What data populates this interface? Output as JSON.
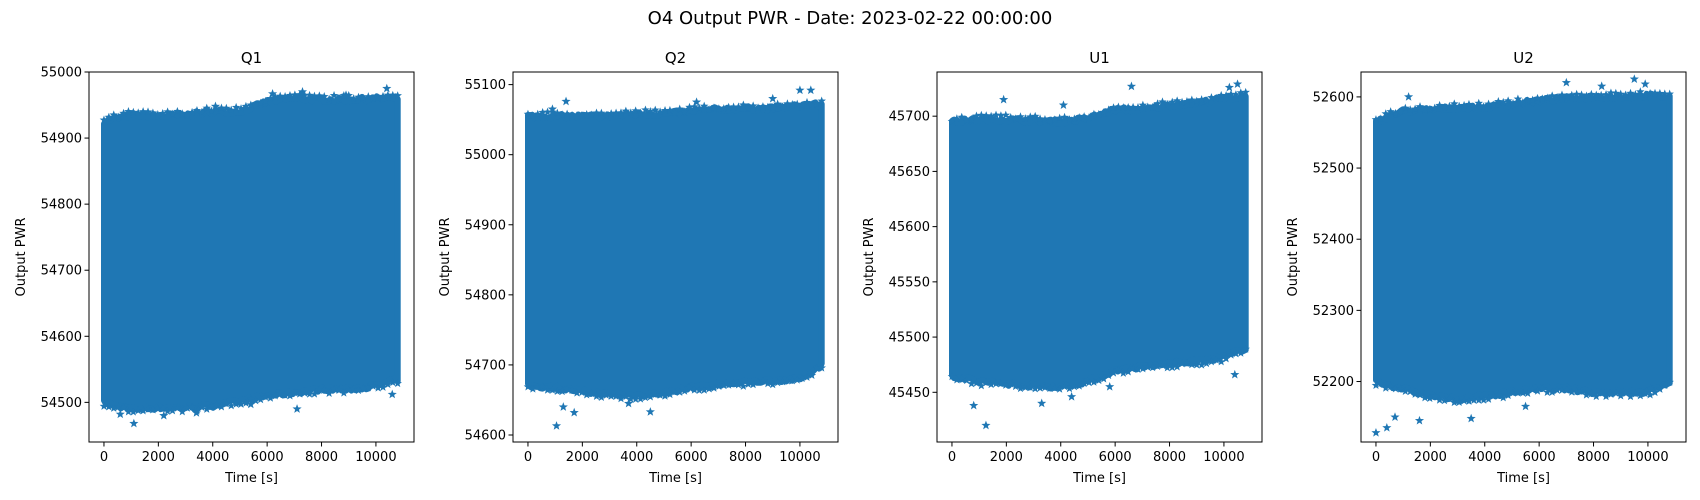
{
  "figure": {
    "suptitle": "O4 Output PWR - Date: 2023-02-22 00:00:00"
  },
  "chart_data": [
    {
      "type": "scatter",
      "title": "Q1",
      "xlabel": "Time [s]",
      "ylabel": "Output PWR",
      "marker": "star",
      "color": "#1f77b4",
      "xlim": [
        -550,
        11400
      ],
      "ylim": [
        54440,
        55000
      ],
      "xticks": [
        0,
        2000,
        4000,
        6000,
        8000,
        10000
      ],
      "yticks": [
        54500,
        54600,
        54700,
        54800,
        54900,
        55000
      ],
      "x_range": [
        0,
        10800
      ],
      "envelope": {
        "x": [
          0,
          1000,
          2000,
          3000,
          4000,
          5000,
          6000,
          7000,
          8000,
          9000,
          10000,
          10800
        ],
        "upper": [
          54925,
          54935,
          54933,
          54935,
          54940,
          54940,
          54955,
          54960,
          54958,
          54958,
          54960,
          54960
        ],
        "lower": [
          54500,
          54490,
          54492,
          54492,
          54495,
          54502,
          54510,
          54515,
          54520,
          54520,
          54525,
          54535
        ]
      },
      "outliers": [
        [
          1100,
          54468
        ],
        [
          600,
          54482
        ],
        [
          2200,
          54480
        ],
        [
          3400,
          54484
        ],
        [
          5400,
          54497
        ],
        [
          7100,
          54490
        ],
        [
          10600,
          54512
        ],
        [
          4100,
          54948
        ],
        [
          6200,
          54967
        ],
        [
          7300,
          54970
        ],
        [
          8900,
          54965
        ],
        [
          10400,
          54975
        ]
      ]
    },
    {
      "type": "scatter",
      "title": "Q2",
      "xlabel": "Time [s]",
      "ylabel": "Output PWR",
      "marker": "star",
      "color": "#1f77b4",
      "xlim": [
        -550,
        11400
      ],
      "ylim": [
        54590,
        55118
      ],
      "xticks": [
        0,
        2000,
        4000,
        6000,
        8000,
        10000
      ],
      "yticks": [
        54600,
        54700,
        54800,
        54900,
        55000,
        55100
      ],
      "x_range": [
        0,
        10800
      ],
      "envelope": {
        "x": [
          0,
          1000,
          2000,
          3000,
          4000,
          5000,
          6000,
          7000,
          8000,
          9000,
          10000,
          10800
        ],
        "upper": [
          55055,
          55055,
          55055,
          55055,
          55058,
          55058,
          55062,
          55065,
          55066,
          55066,
          55070,
          55072
        ],
        "lower": [
          54670,
          54668,
          54662,
          54658,
          54657,
          54660,
          54668,
          54672,
          54675,
          54678,
          54680,
          54700
        ]
      },
      "outliers": [
        [
          1050,
          54613
        ],
        [
          1300,
          54640
        ],
        [
          1700,
          54632
        ],
        [
          4500,
          54633
        ],
        [
          3700,
          54645
        ],
        [
          1400,
          55076
        ],
        [
          900,
          55065
        ],
        [
          9000,
          55080
        ],
        [
          10000,
          55092
        ],
        [
          10400,
          55092
        ],
        [
          6200,
          55075
        ]
      ]
    },
    {
      "type": "scatter",
      "title": "U1",
      "xlabel": "Time [s]",
      "ylabel": "Output PWR",
      "marker": "star",
      "color": "#1f77b4",
      "xlim": [
        -550,
        11400
      ],
      "ylim": [
        45405,
        45740
      ],
      "xticks": [
        0,
        2000,
        4000,
        6000,
        8000,
        10000
      ],
      "yticks": [
        45450,
        45500,
        45550,
        45600,
        45650,
        45700
      ],
      "x_range": [
        0,
        10800
      ],
      "envelope": {
        "x": [
          0,
          1000,
          2000,
          3000,
          4000,
          5000,
          6000,
          7000,
          8000,
          9000,
          10000,
          10800
        ],
        "upper": [
          45695,
          45697,
          45697,
          45696,
          45695,
          45698,
          45706,
          45706,
          45710,
          45712,
          45716,
          45718
        ],
        "lower": [
          45465,
          45460,
          45458,
          45456,
          45455,
          45460,
          45470,
          45473,
          45476,
          45478,
          45482,
          45490
        ]
      },
      "outliers": [
        [
          1250,
          45420
        ],
        [
          800,
          45438
        ],
        [
          3300,
          45440
        ],
        [
          4400,
          45446
        ],
        [
          5800,
          45455
        ],
        [
          10400,
          45466
        ],
        [
          1900,
          45715
        ],
        [
          6600,
          45727
        ],
        [
          10200,
          45726
        ],
        [
          10500,
          45729
        ],
        [
          4100,
          45710
        ]
      ]
    },
    {
      "type": "scatter",
      "title": "U2",
      "xlabel": "Time [s]",
      "ylabel": "Output PWR",
      "marker": "star",
      "color": "#1f77b4",
      "xlim": [
        -550,
        11400
      ],
      "ylim": [
        52115,
        52635
      ],
      "xticks": [
        0,
        2000,
        4000,
        6000,
        8000,
        10000
      ],
      "yticks": [
        52200,
        52300,
        52400,
        52500,
        52600
      ],
      "x_range": [
        0,
        10800
      ],
      "envelope": {
        "x": [
          0,
          1000,
          2000,
          3000,
          4000,
          5000,
          6000,
          7000,
          8000,
          9000,
          10000,
          10800
        ],
        "upper": [
          52565,
          52580,
          52582,
          52585,
          52585,
          52590,
          52595,
          52598,
          52600,
          52600,
          52602,
          52600
        ],
        "lower": [
          52200,
          52190,
          52180,
          52175,
          52180,
          52185,
          52190,
          52190,
          52185,
          52185,
          52185,
          52200
        ]
      },
      "outliers": [
        [
          0,
          52128
        ],
        [
          400,
          52135
        ],
        [
          700,
          52150
        ],
        [
          1600,
          52145
        ],
        [
          3500,
          52148
        ],
        [
          5500,
          52165
        ],
        [
          10100,
          52190
        ],
        [
          1200,
          52600
        ],
        [
          7000,
          52620
        ],
        [
          9500,
          52625
        ],
        [
          9900,
          52618
        ],
        [
          8300,
          52615
        ]
      ]
    }
  ]
}
